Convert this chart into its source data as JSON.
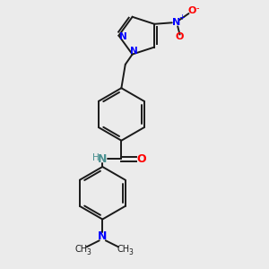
{
  "background_color": "#ebebeb",
  "bond_color": "#1a1a1a",
  "nitrogen_color": "#0000ff",
  "oxygen_color": "#ff0000",
  "nh_color": "#4a9090",
  "figsize": [
    3.0,
    3.0
  ],
  "dpi": 100,
  "xlim": [
    0,
    10
  ],
  "ylim": [
    0,
    10
  ]
}
